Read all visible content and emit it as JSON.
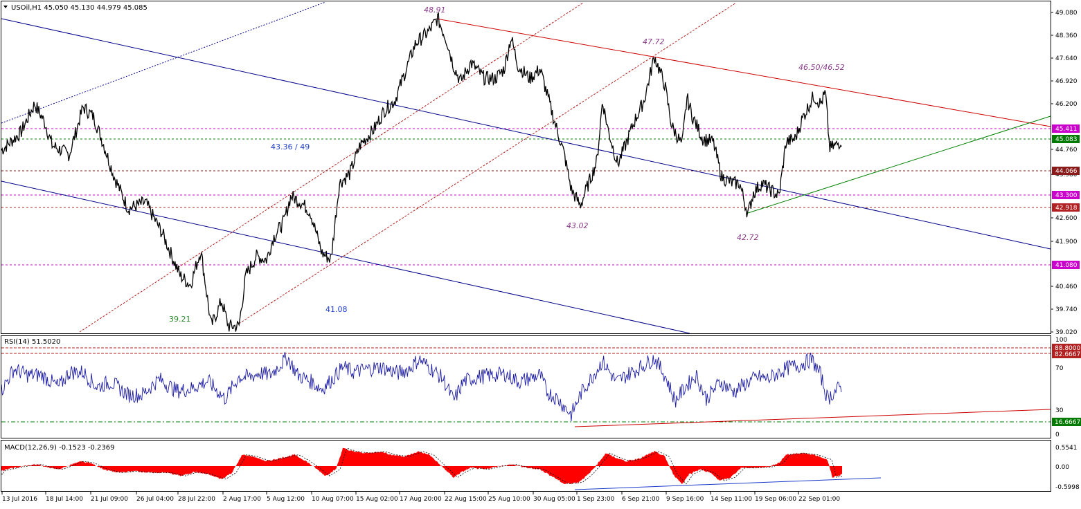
{
  "main_panel": {
    "symbol_header": "USOil,H1  45.050 45.130 44.979 45.085",
    "price_ticks": [
      "49.080",
      "48.360",
      "47.640",
      "46.920",
      "46.200",
      "44.760",
      "43.980",
      "42.600",
      "41.900",
      "40.460",
      "39.740",
      "39.020"
    ],
    "price_tags": [
      {
        "text": "45.411",
        "color": "#cc00cc"
      },
      {
        "text": "45.083",
        "color": "#007a00"
      },
      {
        "text": "44.066",
        "color": "#8b1a1a"
      },
      {
        "text": "43.300",
        "color": "#cc00cc"
      },
      {
        "text": "42.918",
        "color": "#b22222"
      },
      {
        "text": "41.080",
        "color": "#cc00cc"
      }
    ],
    "annotations": [
      {
        "text": "48.91",
        "color": "#8b3a8b",
        "italic": true
      },
      {
        "text": "47.72",
        "color": "#8b3a8b",
        "italic": true
      },
      {
        "text": "46.50/46.52",
        "color": "#8b3a8b",
        "italic": true
      },
      {
        "text": "43.36 / 49",
        "color": "#1c3ccc",
        "italic": false
      },
      {
        "text": "43.02",
        "color": "#8b3a8b",
        "italic": true
      },
      {
        "text": "42.72",
        "color": "#8b3a8b",
        "italic": true
      },
      {
        "text": "41.08",
        "color": "#1c3ccc",
        "italic": false
      },
      {
        "text": "39.21",
        "color": "#2e8b2e",
        "italic": false
      }
    ]
  },
  "rsi_panel": {
    "header": "RSI(14) 51.5020",
    "ticks": [
      "100",
      "70",
      "30",
      "0"
    ],
    "level_tags": [
      {
        "text": "88.8000",
        "color": "#b22222"
      },
      {
        "text": "82.6667",
        "color": "#b22222"
      },
      {
        "text": "16.6667",
        "color": "#007a00"
      }
    ]
  },
  "macd_panel": {
    "header": "MACD(12,26,9) -0.1523 -0.2369",
    "ticks": [
      "0.5541",
      "0.00",
      "-0.5998"
    ]
  },
  "time_axis": [
    "13 Jul 2016",
    "18 Jul 14:00",
    "21 Jul 09:00",
    "26 Jul 04:00",
    "28 Jul 22:00",
    "2 Aug 17:00",
    "5 Aug 12:00",
    "10 Aug 07:00",
    "15 Aug 02:00",
    "17 Aug 20:00",
    "22 Aug 15:00",
    "25 Aug 10:00",
    "30 Aug 05:00",
    "1 Sep 23:00",
    "6 Sep 21:00",
    "9 Sep 16:00",
    "14 Sep 11:00",
    "19 Sep 06:00",
    "22 Sep 01:00"
  ],
  "colors": {
    "price_line": "#000000",
    "red_channel": "#cc0000",
    "blue_channel": "#00008b",
    "green_trend": "#008000",
    "rsi_line": "#1a1aa6",
    "macd_hist": "#ff0000"
  },
  "series": {
    "price_anchors": [
      [
        0,
        44.7
      ],
      [
        30,
        45.3
      ],
      [
        50,
        46.2
      ],
      [
        65,
        45.6
      ],
      [
        75,
        44.9
      ],
      [
        100,
        44.6
      ],
      [
        120,
        46.1
      ],
      [
        135,
        45.8
      ],
      [
        150,
        44.9
      ],
      [
        165,
        43.9
      ],
      [
        185,
        42.9
      ],
      [
        210,
        43.1
      ],
      [
        235,
        42.1
      ],
      [
        260,
        40.8
      ],
      [
        275,
        40.5
      ],
      [
        290,
        41.6
      ],
      [
        305,
        39.2
      ],
      [
        320,
        40.0
      ],
      [
        330,
        39.2
      ],
      [
        345,
        39.2
      ],
      [
        355,
        40.8
      ],
      [
        370,
        41.4
      ],
      [
        385,
        41.3
      ],
      [
        395,
        42.0
      ],
      [
        410,
        42.5
      ],
      [
        420,
        43.3
      ],
      [
        435,
        43.1
      ],
      [
        448,
        42.8
      ],
      [
        465,
        41.5
      ],
      [
        478,
        41.3
      ],
      [
        490,
        43.7
      ],
      [
        505,
        44.0
      ],
      [
        520,
        44.9
      ],
      [
        540,
        45.4
      ],
      [
        555,
        46.0
      ],
      [
        570,
        46.3
      ],
      [
        585,
        47.2
      ],
      [
        600,
        48.1
      ],
      [
        620,
        48.5
      ],
      [
        632,
        48.9
      ],
      [
        645,
        48.2
      ],
      [
        655,
        47.4
      ],
      [
        665,
        46.9
      ],
      [
        680,
        47.5
      ],
      [
        700,
        47.0
      ],
      [
        715,
        47.0
      ],
      [
        728,
        47.3
      ],
      [
        738,
        48.3
      ],
      [
        748,
        47.4
      ],
      [
        765,
        47.0
      ],
      [
        780,
        47.3
      ],
      [
        800,
        45.7
      ],
      [
        815,
        44.6
      ],
      [
        825,
        43.5
      ],
      [
        838,
        43.0
      ],
      [
        850,
        43.7
      ],
      [
        862,
        44.4
      ],
      [
        870,
        46.3
      ],
      [
        878,
        45.4
      ],
      [
        892,
        44.3
      ],
      [
        905,
        45.0
      ],
      [
        915,
        45.6
      ],
      [
        930,
        46.3
      ],
      [
        945,
        47.7
      ],
      [
        960,
        46.8
      ],
      [
        970,
        45.5
      ],
      [
        985,
        44.9
      ],
      [
        992,
        46.4
      ],
      [
        1000,
        45.8
      ],
      [
        1015,
        45.1
      ],
      [
        1030,
        45.0
      ],
      [
        1042,
        43.9
      ],
      [
        1058,
        43.7
      ],
      [
        1068,
        43.7
      ],
      [
        1080,
        42.72
      ],
      [
        1088,
        43.4
      ],
      [
        1100,
        43.7
      ],
      [
        1112,
        43.5
      ],
      [
        1125,
        43.3
      ],
      [
        1135,
        45.0
      ],
      [
        1148,
        45.1
      ],
      [
        1160,
        45.8
      ],
      [
        1175,
        46.45
      ],
      [
        1185,
        46.2
      ],
      [
        1192,
        46.55
      ],
      [
        1198,
        44.8
      ],
      [
        1208,
        44.9
      ],
      [
        1216,
        45.08
      ]
    ],
    "rsi_anchors": [
      [
        0,
        44
      ],
      [
        20,
        68
      ],
      [
        40,
        62
      ],
      [
        60,
        62
      ],
      [
        85,
        50
      ],
      [
        100,
        65
      ],
      [
        120,
        65
      ],
      [
        140,
        50
      ],
      [
        160,
        55
      ],
      [
        185,
        42
      ],
      [
        205,
        42
      ],
      [
        230,
        58
      ],
      [
        255,
        46
      ],
      [
        275,
        48
      ],
      [
        300,
        56
      ],
      [
        325,
        38
      ],
      [
        345,
        60
      ],
      [
        360,
        60
      ],
      [
        375,
        64
      ],
      [
        390,
        62
      ],
      [
        415,
        80
      ],
      [
        430,
        62
      ],
      [
        450,
        55
      ],
      [
        465,
        48
      ],
      [
        480,
        58
      ],
      [
        495,
        70
      ],
      [
        510,
        65
      ],
      [
        530,
        68
      ],
      [
        550,
        70
      ],
      [
        575,
        64
      ],
      [
        590,
        68
      ],
      [
        605,
        78
      ],
      [
        620,
        70
      ],
      [
        640,
        58
      ],
      [
        655,
        36
      ],
      [
        670,
        56
      ],
      [
        690,
        60
      ],
      [
        710,
        62
      ],
      [
        730,
        63
      ],
      [
        750,
        55
      ],
      [
        770,
        60
      ],
      [
        780,
        62
      ],
      [
        790,
        45
      ],
      [
        805,
        38
      ],
      [
        825,
        22
      ],
      [
        840,
        45
      ],
      [
        855,
        60
      ],
      [
        870,
        76
      ],
      [
        890,
        55
      ],
      [
        905,
        62
      ],
      [
        925,
        70
      ],
      [
        945,
        79
      ],
      [
        960,
        62
      ],
      [
        975,
        36
      ],
      [
        990,
        50
      ],
      [
        1005,
        62
      ],
      [
        1020,
        38
      ],
      [
        1040,
        55
      ],
      [
        1060,
        45
      ],
      [
        1080,
        55
      ],
      [
        1095,
        60
      ],
      [
        1110,
        58
      ],
      [
        1125,
        65
      ],
      [
        1140,
        70
      ],
      [
        1155,
        72
      ],
      [
        1172,
        78
      ],
      [
        1185,
        62
      ],
      [
        1195,
        38
      ],
      [
        1205,
        45
      ],
      [
        1216,
        51.5
      ]
    ],
    "macd_anchors": [
      [
        0,
        -0.15
      ],
      [
        20,
        -0.05
      ],
      [
        40,
        0.02
      ],
      [
        55,
        0.05
      ],
      [
        70,
        -0.05
      ],
      [
        85,
        -0.1
      ],
      [
        100,
        0.02
      ],
      [
        115,
        0.15
      ],
      [
        130,
        0.1
      ],
      [
        150,
        -0.1
      ],
      [
        170,
        -0.2
      ],
      [
        195,
        -0.15
      ],
      [
        215,
        -0.2
      ],
      [
        240,
        -0.2
      ],
      [
        262,
        -0.3
      ],
      [
        280,
        -0.18
      ],
      [
        300,
        -0.25
      ],
      [
        320,
        -0.4
      ],
      [
        335,
        -0.2
      ],
      [
        350,
        0.35
      ],
      [
        365,
        0.3
      ],
      [
        385,
        0.15
      ],
      [
        405,
        0.25
      ],
      [
        425,
        0.35
      ],
      [
        440,
        0.18
      ],
      [
        455,
        -0.05
      ],
      [
        470,
        -0.3
      ],
      [
        485,
        -0.1
      ],
      [
        495,
        0.55
      ],
      [
        510,
        0.45
      ],
      [
        530,
        0.4
      ],
      [
        550,
        0.45
      ],
      [
        565,
        0.35
      ],
      [
        585,
        0.3
      ],
      [
        605,
        0.45
      ],
      [
        620,
        0.35
      ],
      [
        640,
        -0.05
      ],
      [
        655,
        -0.35
      ],
      [
        665,
        -0.2
      ],
      [
        680,
        -0.05
      ],
      [
        700,
        -0.1
      ],
      [
        720,
        0.0
      ],
      [
        740,
        0.05
      ],
      [
        760,
        -0.05
      ],
      [
        780,
        -0.1
      ],
      [
        800,
        -0.35
      ],
      [
        815,
        -0.55
      ],
      [
        835,
        -0.5
      ],
      [
        850,
        -0.25
      ],
      [
        860,
        0.0
      ],
      [
        875,
        0.4
      ],
      [
        890,
        0.25
      ],
      [
        905,
        0.15
      ],
      [
        925,
        0.25
      ],
      [
        945,
        0.45
      ],
      [
        960,
        0.3
      ],
      [
        972,
        -0.25
      ],
      [
        985,
        -0.55
      ],
      [
        995,
        -0.25
      ],
      [
        1010,
        -0.1
      ],
      [
        1025,
        -0.2
      ],
      [
        1040,
        -0.45
      ],
      [
        1055,
        -0.35
      ],
      [
        1070,
        -0.05
      ],
      [
        1090,
        -0.05
      ],
      [
        1110,
        -0.02
      ],
      [
        1125,
        0.1
      ],
      [
        1135,
        0.35
      ],
      [
        1155,
        0.4
      ],
      [
        1175,
        0.35
      ],
      [
        1195,
        0.2
      ],
      [
        1202,
        -0.35
      ],
      [
        1212,
        -0.3
      ],
      [
        1216,
        -0.24
      ]
    ]
  }
}
